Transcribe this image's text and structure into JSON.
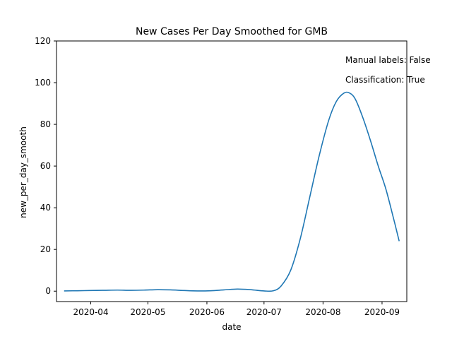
{
  "chart_data": {
    "type": "line",
    "title": "New Cases Per Day Smoothed for GMB",
    "xlabel": "date",
    "ylabel": "new_per_day_smooth",
    "x_type": "date",
    "xlim": [
      "2020-03-14",
      "2020-09-14"
    ],
    "ylim": [
      -5,
      120
    ],
    "x_ticks": [
      "2020-04-01",
      "2020-05-01",
      "2020-06-01",
      "2020-07-01",
      "2020-08-01",
      "2020-09-01"
    ],
    "x_tick_labels": [
      "2020-04",
      "2020-05",
      "2020-06",
      "2020-07",
      "2020-08",
      "2020-09"
    ],
    "y_ticks": [
      0,
      20,
      40,
      60,
      80,
      100,
      120
    ],
    "y_tick_labels": [
      "0",
      "20",
      "40",
      "60",
      "80",
      "100",
      "120"
    ],
    "grid": false,
    "legend": "none",
    "annotations": [
      "Manual labels: False",
      "Classification: True"
    ],
    "series": [
      {
        "color": "#1f77b4",
        "x": [
          "2020-03-18",
          "2020-03-25",
          "2020-04-01",
          "2020-04-08",
          "2020-04-15",
          "2020-04-22",
          "2020-04-29",
          "2020-05-06",
          "2020-05-13",
          "2020-05-20",
          "2020-05-27",
          "2020-06-03",
          "2020-06-10",
          "2020-06-17",
          "2020-06-24",
          "2020-07-01",
          "2020-07-06",
          "2020-07-10",
          "2020-07-15",
          "2020-07-20",
          "2020-07-25",
          "2020-07-30",
          "2020-08-04",
          "2020-08-08",
          "2020-08-12",
          "2020-08-15",
          "2020-08-18",
          "2020-08-22",
          "2020-08-26",
          "2020-08-30",
          "2020-09-03",
          "2020-09-07",
          "2020-09-10"
        ],
        "y": [
          0.1,
          0.2,
          0.3,
          0.4,
          0.5,
          0.4,
          0.5,
          0.7,
          0.6,
          0.3,
          0.1,
          0.2,
          0.6,
          1.0,
          0.7,
          0.1,
          0.2,
          2.5,
          10,
          25,
          45,
          65,
          82,
          91,
          95,
          95,
          92,
          83,
          72,
          60,
          49,
          35,
          24
        ]
      }
    ]
  }
}
